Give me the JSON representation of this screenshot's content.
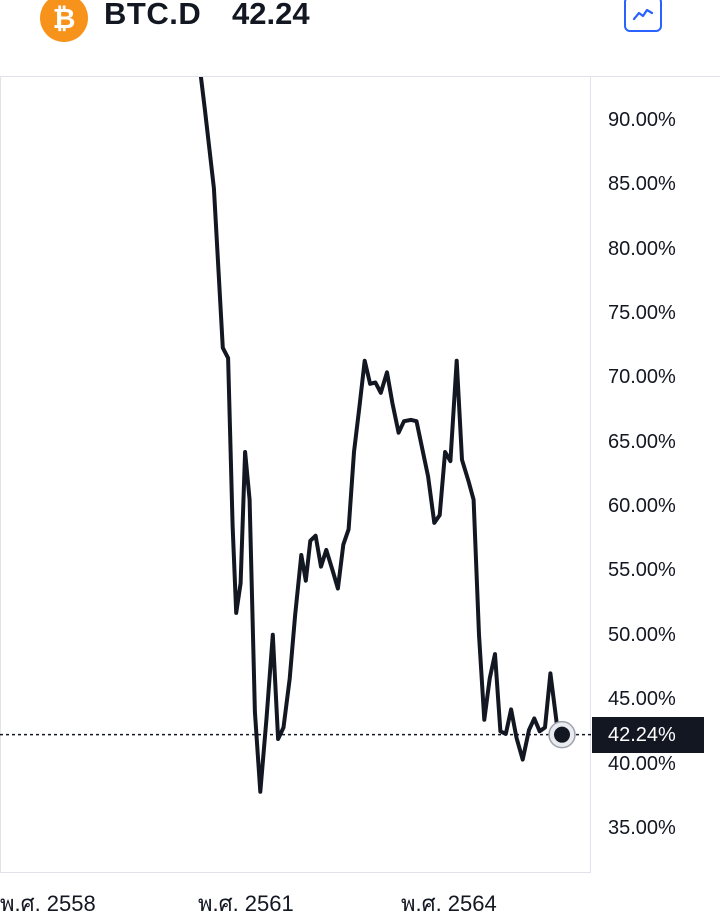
{
  "header": {
    "logo_glyph": "₿",
    "symbol": "BTC.D",
    "price": "42.24",
    "chart_type_icon": "line-chart-icon"
  },
  "chart_data": {
    "type": "line",
    "title": "",
    "y_unit": "%",
    "ylim": [
      32.0,
      94.5
    ],
    "y_ticks": [
      "90.00%",
      "85.00%",
      "80.00%",
      "75.00%",
      "70.00%",
      "65.00%",
      "60.00%",
      "55.00%",
      "50.00%",
      "45.00%",
      "40.00%",
      "35.00%"
    ],
    "y_tick_values": [
      90,
      85,
      80,
      75,
      70,
      65,
      60,
      55,
      50,
      45,
      40,
      35
    ],
    "x_ticks": [
      "พ.ศ. 2558",
      "พ.ศ. 2561",
      "พ.ศ. 2564"
    ],
    "last_value": 42.24,
    "last_value_label": "42.24%",
    "series": [
      {
        "line_color": "#131722",
        "points": [
          [
            0.0,
            96.5
          ],
          [
            1.0,
            90.8
          ],
          [
            2.0,
            84.7
          ],
          [
            3.0,
            72.3
          ],
          [
            3.6,
            71.5
          ],
          [
            4.1,
            58.5
          ],
          [
            4.5,
            51.7
          ],
          [
            5.0,
            54.0
          ],
          [
            5.5,
            64.2
          ],
          [
            6.0,
            60.5
          ],
          [
            6.6,
            44.0
          ],
          [
            7.2,
            37.8
          ],
          [
            7.9,
            43.5
          ],
          [
            8.6,
            50.0
          ],
          [
            9.2,
            41.9
          ],
          [
            9.8,
            42.8
          ],
          [
            10.5,
            46.6
          ],
          [
            11.1,
            51.5
          ],
          [
            11.8,
            56.2
          ],
          [
            12.3,
            54.2
          ],
          [
            12.8,
            57.3
          ],
          [
            13.4,
            57.7
          ],
          [
            14.0,
            55.3
          ],
          [
            14.6,
            56.6
          ],
          [
            15.3,
            55.0
          ],
          [
            15.9,
            53.6
          ],
          [
            16.5,
            57.0
          ],
          [
            17.1,
            58.2
          ],
          [
            17.7,
            64.2
          ],
          [
            18.3,
            67.7
          ],
          [
            18.9,
            71.3
          ],
          [
            19.5,
            69.5
          ],
          [
            20.1,
            69.6
          ],
          [
            20.7,
            68.8
          ],
          [
            21.4,
            70.4
          ],
          [
            22.0,
            68.0
          ],
          [
            22.7,
            65.7
          ],
          [
            23.3,
            66.6
          ],
          [
            24.1,
            66.7
          ],
          [
            24.7,
            66.6
          ],
          [
            25.4,
            64.3
          ],
          [
            26.0,
            62.3
          ],
          [
            26.7,
            58.7
          ],
          [
            27.3,
            59.3
          ],
          [
            27.9,
            64.2
          ],
          [
            28.5,
            63.5
          ],
          [
            29.2,
            71.3
          ],
          [
            29.8,
            63.6
          ],
          [
            30.5,
            62.0
          ],
          [
            31.1,
            60.5
          ],
          [
            31.7,
            50.0
          ],
          [
            32.3,
            43.4
          ],
          [
            32.9,
            46.6
          ],
          [
            33.5,
            48.5
          ],
          [
            34.1,
            42.5
          ],
          [
            34.7,
            42.3
          ],
          [
            35.3,
            44.2
          ],
          [
            35.9,
            42.0
          ],
          [
            36.6,
            40.3
          ],
          [
            37.3,
            42.6
          ],
          [
            37.9,
            43.5
          ],
          [
            38.5,
            42.5
          ],
          [
            39.1,
            42.8
          ],
          [
            39.7,
            47.0
          ],
          [
            40.4,
            43.2
          ],
          [
            41.0,
            42.24
          ]
        ]
      }
    ]
  }
}
